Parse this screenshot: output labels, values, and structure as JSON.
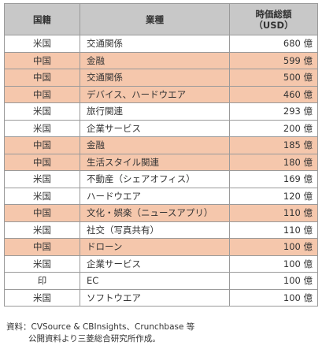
{
  "table": {
    "headers": {
      "country": "国籍",
      "industry": "業種",
      "value_line1": "時価総額",
      "value_line2": "（USD）"
    },
    "rows": [
      {
        "country": "米国",
        "industry": "交通関係",
        "value": "680 億",
        "highlight": false
      },
      {
        "country": "中国",
        "industry": "金融",
        "value": "599 億",
        "highlight": true
      },
      {
        "country": "中国",
        "industry": "交通関係",
        "value": "500 億",
        "highlight": true
      },
      {
        "country": "中国",
        "industry": "デバイス、ハードウエア",
        "value": "460 億",
        "highlight": true
      },
      {
        "country": "米国",
        "industry": "旅行関連",
        "value": "293 億",
        "highlight": false
      },
      {
        "country": "米国",
        "industry": "企業サービス",
        "value": "200 億",
        "highlight": false
      },
      {
        "country": "中国",
        "industry": "金融",
        "value": "185 億",
        "highlight": true
      },
      {
        "country": "中国",
        "industry": "生活スタイル関連",
        "value": "180 億",
        "highlight": true
      },
      {
        "country": "米国",
        "industry": "不動産（シェアオフィス）",
        "value": "169 億",
        "highlight": false
      },
      {
        "country": "米国",
        "industry": "ハードウエア",
        "value": "120 億",
        "highlight": false
      },
      {
        "country": "中国",
        "industry": "文化・娯楽（ニュースアプリ）",
        "value": "110 億",
        "highlight": true
      },
      {
        "country": "米国",
        "industry": "社交（写真共有）",
        "value": "110 億",
        "highlight": false
      },
      {
        "country": "中国",
        "industry": "ドローン",
        "value": "100 億",
        "highlight": true
      },
      {
        "country": "米国",
        "industry": "企業サービス",
        "value": "100 億",
        "highlight": false
      },
      {
        "country": "印",
        "industry": "EC",
        "value": "100 億",
        "highlight": false
      },
      {
        "country": "米国",
        "industry": "ソフトウエア",
        "value": "100 億",
        "highlight": false
      }
    ]
  },
  "note": {
    "line1": "資料：CVSource & CBInsights、Crunchbase 等",
    "line2": "公開資料より三菱総合研究所作成。"
  },
  "colors": {
    "highlight_row": "#f5c7ac",
    "header_bg": "#c8c8c8",
    "border": "#9a9a9a"
  }
}
